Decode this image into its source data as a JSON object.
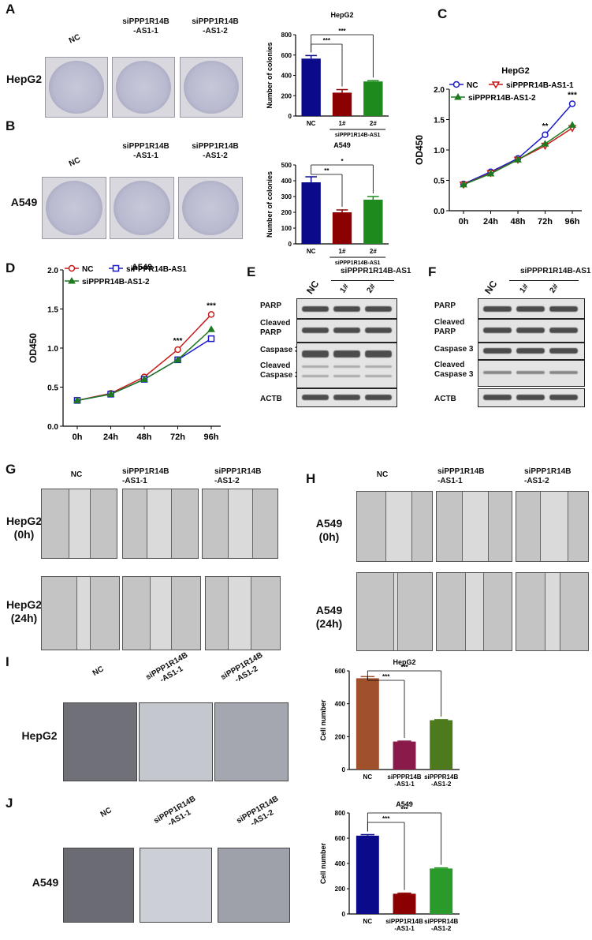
{
  "panels": {
    "A": {
      "letter": "A",
      "col_labels": [
        "NC",
        "siPPP1R14B\n-AS1-1",
        "siPPP1R14B\n-AS1-2"
      ],
      "row_label": "HepG2"
    },
    "B": {
      "letter": "B",
      "col_labels": [
        "NC",
        "siPPP1R14B\n-AS1-1",
        "siPPP1R14B\n-AS1-2"
      ],
      "row_label": "A549"
    },
    "C": {
      "letter": "C"
    },
    "D": {
      "letter": "D"
    },
    "E": {
      "letter": "E",
      "header": "siPPPR1R14B-AS1",
      "lanes": [
        "NC",
        "1#",
        "2#"
      ],
      "rows": [
        "PARP",
        "Cleaved\nPARP",
        "Caspase 3",
        "Cleaved\nCaspase 3",
        "ACTB"
      ]
    },
    "F": {
      "letter": "F",
      "header": "siPPPR1R14B-AS1",
      "lanes": [
        "NC",
        "1#",
        "2#"
      ],
      "rows": [
        "PARP",
        "Cleaved\nPARP",
        "Caspase 3",
        "Cleaved\nCaspase 3",
        "ACTB"
      ]
    },
    "G": {
      "letter": "G",
      "col_labels": [
        "NC",
        "siPPP1R14B\n-AS1-1",
        "siPPP1R14B\n-AS1-2"
      ],
      "row_labels": [
        "HepG2\n(0h)",
        "HepG2\n(24h)"
      ]
    },
    "H": {
      "letter": "H",
      "col_labels": [
        "NC",
        "siPPP1R14B\n-AS1-1",
        "siPPP1R14B\n-AS1-2"
      ],
      "row_labels": [
        "A549\n(0h)",
        "A549\n(24h)"
      ]
    },
    "I": {
      "letter": "I",
      "col_labels": [
        "NC",
        "siPPP1R14B\n-AS1-1",
        "siPPP1R14B\n-AS1-2"
      ],
      "row_label": "HepG2"
    },
    "J": {
      "letter": "J",
      "col_labels": [
        "NC",
        "siPPP1R14B\n-AS1-1",
        "siPPP1R14B\n-AS1-2"
      ],
      "row_label": "A549"
    }
  },
  "chart_data": [
    {
      "id": "A-bar",
      "type": "bar",
      "title": "HepG2",
      "ylabel": "Number of colonies",
      "ylim": [
        0,
        800
      ],
      "yticks": [
        0,
        200,
        400,
        600,
        800
      ],
      "categories": [
        "NC",
        "1#",
        "2#"
      ],
      "values": [
        565,
        230,
        340
      ],
      "errors": [
        30,
        30,
        8
      ],
      "colors": [
        "#0a0a8a",
        "#8b0000",
        "#1e8a1e"
      ],
      "group_label": "siPPP1R14B-AS1",
      "annotations": [
        "***",
        "***"
      ]
    },
    {
      "id": "B-bar",
      "type": "bar",
      "title": "A549",
      "ylabel": "Number of colonies",
      "ylim": [
        0,
        500
      ],
      "yticks": [
        0,
        100,
        200,
        300,
        400,
        500
      ],
      "categories": [
        "NC",
        "1#",
        "2#"
      ],
      "values": [
        390,
        200,
        280
      ],
      "errors": [
        35,
        15,
        20
      ],
      "colors": [
        "#0a0a8a",
        "#8b0000",
        "#1e8a1e"
      ],
      "group_label": "siPPP1R14B-AS1",
      "annotations": [
        "**",
        "*"
      ]
    },
    {
      "id": "C-line",
      "type": "line",
      "title": "HepG2",
      "ylabel": "OD450",
      "ylim": [
        0,
        2.0
      ],
      "yticks": [
        "0.0",
        "0.5",
        "1.0",
        "1.5",
        "2.0"
      ],
      "categories": [
        "0h",
        "24h",
        "48h",
        "72h",
        "96h"
      ],
      "series": [
        {
          "name": "NC",
          "color": "#1a1ac8",
          "values": [
            0.44,
            0.64,
            0.86,
            1.25,
            1.76
          ]
        },
        {
          "name": "siPPPR14B-AS1-1",
          "color": "#c81a1a",
          "values": [
            0.43,
            0.62,
            0.84,
            1.07,
            1.36
          ]
        },
        {
          "name": "siPPPR14B-AS1-2",
          "color": "#1e7a1e",
          "values": [
            0.43,
            0.61,
            0.84,
            1.1,
            1.41
          ]
        }
      ],
      "annotations": [
        {
          "x": "72h",
          "text": "**"
        },
        {
          "x": "96h",
          "text": "***"
        }
      ]
    },
    {
      "id": "D-line",
      "type": "line",
      "title": "A549",
      "ylabel": "OD450",
      "ylim": [
        0,
        2.0
      ],
      "yticks": [
        "0.0",
        "0.5",
        "1.0",
        "1.5",
        "2.0"
      ],
      "categories": [
        "0h",
        "24h",
        "48h",
        "72h",
        "96h"
      ],
      "series": [
        {
          "name": "NC",
          "color": "#c81a1a",
          "values": [
            0.33,
            0.42,
            0.63,
            0.98,
            1.43
          ]
        },
        {
          "name": "siPPPR14B-AS1",
          "color": "#1a1ac8",
          "values": [
            0.33,
            0.41,
            0.6,
            0.85,
            1.12
          ]
        },
        {
          "name": "siPPPR14B-AS1-2",
          "color": "#1e7a1e",
          "values": [
            0.33,
            0.41,
            0.6,
            0.85,
            1.24
          ]
        }
      ],
      "annotations": [
        {
          "x": "72h",
          "text": "***"
        },
        {
          "x": "96h",
          "text": "***"
        }
      ]
    },
    {
      "id": "I-bar",
      "type": "bar",
      "title": "HepG2",
      "ylabel": "Cell number",
      "ylim": [
        0,
        600
      ],
      "yticks": [
        0,
        200,
        400,
        600
      ],
      "categories": [
        "NC",
        "siPPPR14B\n-AS1-1",
        "siPPPR14B\n-AS1-2"
      ],
      "values": [
        555,
        170,
        300
      ],
      "errors": [
        10,
        3,
        3
      ],
      "colors": [
        "#a0502a",
        "#8a1a4a",
        "#4e7a1e"
      ],
      "annotations": [
        "***",
        "***"
      ]
    },
    {
      "id": "J-bar",
      "type": "bar",
      "title": "A549",
      "ylabel": "Cell number",
      "ylim": [
        0,
        800
      ],
      "yticks": [
        0,
        200,
        400,
        600,
        800
      ],
      "categories": [
        "NC",
        "siPPP1R14B\n-AS1-1",
        "siPPPR14B\n-AS1-2"
      ],
      "values": [
        620,
        160,
        360
      ],
      "errors": [
        8,
        5,
        5
      ],
      "colors": [
        "#0a0a8a",
        "#8b0000",
        "#2a9a2a"
      ],
      "annotations": [
        "***",
        "***"
      ]
    }
  ]
}
